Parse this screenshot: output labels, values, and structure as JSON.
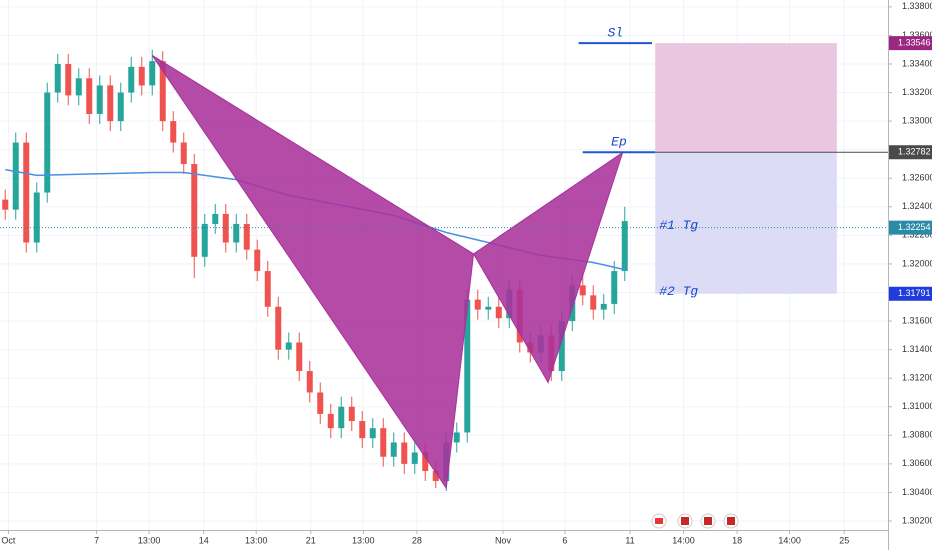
{
  "chart_data": {
    "type": "candlestick",
    "up_color": "#26a69a",
    "down_color": "#ef5350",
    "grid": true,
    "xlim": [
      -0.5,
      84.07
    ],
    "ylim": [
      1.30137,
      1.33848
    ],
    "xticks": [
      {
        "value": 0.3,
        "label": "Oct"
      },
      {
        "value": 8.7,
        "label": "7"
      },
      {
        "value": 13.7,
        "label": "13:00"
      },
      {
        "value": 18.9,
        "label": "14"
      },
      {
        "value": 23.9,
        "label": "13:00"
      },
      {
        "value": 29.1,
        "label": "21"
      },
      {
        "value": 34.1,
        "label": "13:00"
      },
      {
        "value": 39.2,
        "label": "28"
      },
      {
        "value": 47.4,
        "label": "Nov"
      },
      {
        "value": 53.3,
        "label": "6"
      },
      {
        "value": 59.5,
        "label": "11"
      },
      {
        "value": 64.6,
        "label": "14:00"
      },
      {
        "value": 69.7,
        "label": "18"
      },
      {
        "value": 74.7,
        "label": "14:00"
      },
      {
        "value": 79.9,
        "label": "25"
      }
    ],
    "yticks": [
      {
        "value": 1.302,
        "label": "1.30200"
      },
      {
        "value": 1.304,
        "label": "1.30400"
      },
      {
        "value": 1.306,
        "label": "1.30600"
      },
      {
        "value": 1.308,
        "label": "1.30800"
      },
      {
        "value": 1.31,
        "label": "1.31000"
      },
      {
        "value": 1.312,
        "label": "1.31200"
      },
      {
        "value": 1.314,
        "label": "1.31400"
      },
      {
        "value": 1.316,
        "label": "1.31600"
      },
      {
        "value": 1.318,
        "label": "1.31800"
      },
      {
        "value": 1.32,
        "label": "1.32000"
      },
      {
        "value": 1.322,
        "label": "1.32200"
      },
      {
        "value": 1.324,
        "label": "1.32400"
      },
      {
        "value": 1.326,
        "label": "1.32600"
      },
      {
        "value": 1.328,
        "label": "1.32800"
      },
      {
        "value": 1.33,
        "label": "1.33000"
      },
      {
        "value": 1.332,
        "label": "1.33200"
      },
      {
        "value": 1.334,
        "label": "1.33400"
      },
      {
        "value": 1.336,
        "label": "1.33600"
      },
      {
        "value": 1.338,
        "label": "1.33800"
      }
    ],
    "x": [
      0,
      1,
      2,
      3,
      4,
      5,
      6,
      7,
      8,
      9,
      10,
      11,
      12,
      13,
      14,
      15,
      16,
      17,
      18,
      19,
      20,
      21,
      22,
      23,
      24,
      25,
      26,
      27,
      28,
      29,
      30,
      31,
      32,
      33,
      34,
      35,
      36,
      37,
      38,
      39,
      40,
      41,
      42,
      43,
      44,
      45,
      46,
      47,
      48,
      49,
      50,
      51,
      52,
      53,
      54,
      55,
      56,
      57,
      58,
      59
    ],
    "open": [
      1.3245,
      1.3238,
      1.3285,
      1.3215,
      1.325,
      1.332,
      1.334,
      1.3318,
      1.333,
      1.3305,
      1.3325,
      1.33,
      1.332,
      1.3338,
      1.3325,
      1.3342,
      1.33,
      1.3285,
      1.327,
      1.3205,
      1.3228,
      1.3235,
      1.3215,
      1.3228,
      1.321,
      1.3195,
      1.317,
      1.314,
      1.3145,
      1.3125,
      1.311,
      1.3095,
      1.3085,
      1.31,
      1.309,
      1.3078,
      1.3085,
      1.3065,
      1.3075,
      1.306,
      1.3068,
      1.3055,
      1.3048,
      1.3075,
      1.3082,
      1.3175,
      1.3168,
      1.317,
      1.3162,
      1.3182,
      1.3145,
      1.3138,
      1.315,
      1.3125,
      1.316,
      1.3185,
      1.3178,
      1.3168,
      1.3172,
      1.3195
    ],
    "high": [
      1.3252,
      1.3292,
      1.3292,
      1.3257,
      1.3327,
      1.3347,
      1.3347,
      1.3337,
      1.3337,
      1.3332,
      1.3332,
      1.3327,
      1.3345,
      1.3345,
      1.335,
      1.3349,
      1.3307,
      1.3292,
      1.3277,
      1.3235,
      1.3242,
      1.3242,
      1.3235,
      1.3235,
      1.3217,
      1.3202,
      1.3177,
      1.3152,
      1.3152,
      1.3132,
      1.3117,
      1.3102,
      1.3107,
      1.3107,
      1.3097,
      1.3092,
      1.3092,
      1.3082,
      1.3082,
      1.3075,
      1.3075,
      1.3062,
      1.3082,
      1.3089,
      1.3182,
      1.3182,
      1.3177,
      1.3177,
      1.3189,
      1.3189,
      1.3152,
      1.3157,
      1.3157,
      1.3167,
      1.3192,
      1.3192,
      1.3185,
      1.3179,
      1.3202,
      1.324
    ],
    "low": [
      1.3231,
      1.3231,
      1.3208,
      1.3208,
      1.3243,
      1.3313,
      1.3311,
      1.3311,
      1.3298,
      1.3298,
      1.3293,
      1.3293,
      1.3313,
      1.3318,
      1.3318,
      1.3293,
      1.3278,
      1.3263,
      1.319,
      1.3198,
      1.3221,
      1.3208,
      1.3208,
      1.3203,
      1.3188,
      1.3163,
      1.3133,
      1.3133,
      1.3118,
      1.3103,
      1.3088,
      1.3078,
      1.3078,
      1.3083,
      1.3071,
      1.3071,
      1.3058,
      1.3058,
      1.3053,
      1.3053,
      1.3048,
      1.3043,
      1.3041,
      1.3068,
      1.3075,
      1.3161,
      1.3161,
      1.3155,
      1.3155,
      1.3138,
      1.3131,
      1.3131,
      1.3118,
      1.3118,
      1.3153,
      1.3171,
      1.3161,
      1.3161,
      1.3165,
      1.3188
    ],
    "close": [
      1.3238,
      1.3285,
      1.3215,
      1.325,
      1.332,
      1.334,
      1.3318,
      1.333,
      1.3305,
      1.3325,
      1.33,
      1.332,
      1.3338,
      1.3325,
      1.3342,
      1.33,
      1.3285,
      1.327,
      1.3205,
      1.3228,
      1.3235,
      1.3215,
      1.3228,
      1.321,
      1.3195,
      1.317,
      1.314,
      1.3145,
      1.3125,
      1.311,
      1.3095,
      1.3085,
      1.31,
      1.309,
      1.3078,
      1.3085,
      1.3065,
      1.3075,
      1.306,
      1.3068,
      1.3055,
      1.3048,
      1.3075,
      1.3082,
      1.3175,
      1.3168,
      1.317,
      1.3162,
      1.3182,
      1.3145,
      1.3138,
      1.315,
      1.3125,
      1.316,
      1.3185,
      1.3178,
      1.3168,
      1.3172,
      1.3195,
      1.323
    ],
    "moving_average": {
      "color": "#4a90e2",
      "x": [
        0,
        3,
        8,
        14,
        17,
        22,
        27,
        32,
        37,
        42,
        46,
        51,
        56,
        59
      ],
      "values": [
        1.3266,
        1.3262,
        1.3263,
        1.3264,
        1.3264,
        1.3259,
        1.3248,
        1.3241,
        1.3234,
        1.3222,
        1.3215,
        1.3206,
        1.3201,
        1.3196
      ]
    },
    "pattern": {
      "color": "#a8329b",
      "x": [
        14,
        42,
        44.6,
        51.7,
        58.8
      ],
      "y": [
        1.3346,
        1.3043,
        1.3207,
        1.3117,
        1.3278
      ]
    },
    "stop_loss": {
      "label": "Sl",
      "value": 1.33546,
      "value_label": "1.33546",
      "x": [
        54.6,
        61.6
      ],
      "color": "#9c2780",
      "zone_color": "#ebc6e0"
    },
    "entry": {
      "label": "Ep",
      "value": 1.32782,
      "value_label": "1.32782",
      "x": [
        55.0,
        61.9
      ],
      "color": "#4a4a4a"
    },
    "target_zone_color": "#dddcf7",
    "zone_x": [
      61.9,
      79.2
    ],
    "level_color": "#1e56d8",
    "targets": [
      {
        "label": "#1 Tg",
        "value": 1.32254,
        "value_label": "1.32254",
        "color": "#2a8ba6"
      },
      {
        "label": "#2 Tg",
        "value": 1.31791,
        "value_label": "1.31791",
        "color": "#1f3bdb"
      }
    ]
  }
}
